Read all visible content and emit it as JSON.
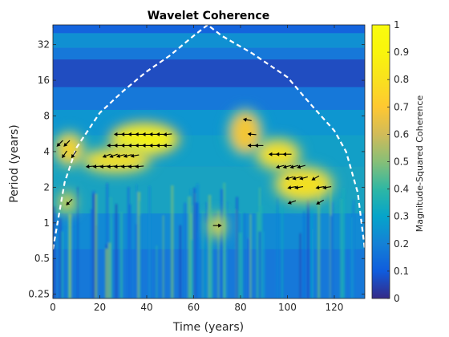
{
  "chart_data": {
    "type": "heatmap",
    "title": "Wavelet Coherence",
    "xlabel": "Time (years)",
    "ylabel": "Period (years)",
    "colorbar_label": "Magnitude-Squared Coherence",
    "xlim": [
      0,
      133
    ],
    "ylim": [
      0.23,
      47
    ],
    "yscale": "log2",
    "x_ticks": [
      0,
      20,
      40,
      60,
      80,
      100,
      120
    ],
    "x_tick_labels": [
      "0",
      "20",
      "40",
      "60",
      "80",
      "100",
      "120"
    ],
    "y_ticks": [
      0.25,
      0.5,
      1,
      2,
      4,
      8,
      16,
      32
    ],
    "y_tick_labels": [
      "0.25",
      "0.5",
      "1",
      "2",
      "4",
      "8",
      "16",
      "32"
    ],
    "colorbar_ticks": [
      0,
      0.1,
      0.2,
      0.3,
      0.4,
      0.5,
      0.6,
      0.7,
      0.8,
      0.9,
      1
    ],
    "colorbar_tick_labels": [
      "0",
      "0.1",
      "0.2",
      "0.3",
      "0.4",
      "0.5",
      "0.6",
      "0.7",
      "0.8",
      "0.9",
      "1"
    ],
    "clim": [
      0,
      1
    ],
    "colormap": "parula",
    "cone_of_influence": {
      "style": "white dashed",
      "points": [
        [
          0,
          0.6
        ],
        [
          5,
          2.2
        ],
        [
          10,
          4.3
        ],
        [
          20,
          8.5
        ],
        [
          30,
          13
        ],
        [
          40,
          19
        ],
        [
          50,
          26
        ],
        [
          60,
          38
        ],
        [
          66,
          47
        ],
        [
          72,
          38
        ],
        [
          85,
          27
        ],
        [
          100,
          17
        ],
        [
          110,
          10
        ],
        [
          120,
          6
        ],
        [
          125,
          4
        ],
        [
          130,
          1.8
        ],
        [
          133,
          0.6
        ]
      ]
    },
    "high_coherence_regions": [
      {
        "x": [
          26,
          52
        ],
        "period": [
          4.0,
          6.5
        ],
        "value": 0.9
      },
      {
        "x": [
          14,
          40
        ],
        "period": [
          2.8,
          4.0
        ],
        "value": 0.8
      },
      {
        "x": [
          2,
          12
        ],
        "period": [
          3.2,
          5.5
        ],
        "value": 0.75
      },
      {
        "x": [
          88,
          104
        ],
        "period": [
          3.0,
          4.8
        ],
        "value": 0.8
      },
      {
        "x": [
          96,
          118
        ],
        "period": [
          1.6,
          2.8
        ],
        "value": 0.8
      },
      {
        "x": [
          76,
          88
        ],
        "period": [
          4.0,
          8.5
        ],
        "value": 0.7
      },
      {
        "x": [
          68,
          72
        ],
        "period": [
          0.8,
          1.1
        ],
        "value": 0.8
      },
      {
        "x": [
          4,
          8
        ],
        "period": [
          1.3,
          1.7
        ],
        "value": 0.8
      }
    ],
    "phase_arrows": [
      {
        "x": 28,
        "period": 5.6,
        "angle": 180
      },
      {
        "x": 31,
        "period": 5.6,
        "angle": 180
      },
      {
        "x": 34,
        "period": 5.6,
        "angle": 180
      },
      {
        "x": 37,
        "period": 5.6,
        "angle": 180
      },
      {
        "x": 40,
        "period": 5.6,
        "angle": 180
      },
      {
        "x": 43,
        "period": 5.6,
        "angle": 180
      },
      {
        "x": 46,
        "period": 5.6,
        "angle": 180
      },
      {
        "x": 49,
        "period": 5.6,
        "angle": 185
      },
      {
        "x": 25,
        "period": 4.5,
        "angle": 180
      },
      {
        "x": 28,
        "period": 4.5,
        "angle": 180
      },
      {
        "x": 31,
        "period": 4.5,
        "angle": 180
      },
      {
        "x": 34,
        "period": 4.5,
        "angle": 180
      },
      {
        "x": 37,
        "period": 4.5,
        "angle": 180
      },
      {
        "x": 40,
        "period": 4.5,
        "angle": 180
      },
      {
        "x": 43,
        "period": 4.5,
        "angle": 180
      },
      {
        "x": 46,
        "period": 4.5,
        "angle": 180
      },
      {
        "x": 49,
        "period": 4.5,
        "angle": 180
      },
      {
        "x": 23,
        "period": 3.7,
        "angle": 200
      },
      {
        "x": 26,
        "period": 3.7,
        "angle": 200
      },
      {
        "x": 29,
        "period": 3.7,
        "angle": 195
      },
      {
        "x": 32,
        "period": 3.7,
        "angle": 195
      },
      {
        "x": 35,
        "period": 3.7,
        "angle": 190
      },
      {
        "x": 16,
        "period": 3.0,
        "angle": 185
      },
      {
        "x": 19,
        "period": 3.0,
        "angle": 185
      },
      {
        "x": 22,
        "period": 3.0,
        "angle": 185
      },
      {
        "x": 25,
        "period": 3.0,
        "angle": 185
      },
      {
        "x": 28,
        "period": 3.0,
        "angle": 185
      },
      {
        "x": 31,
        "period": 3.0,
        "angle": 185
      },
      {
        "x": 34,
        "period": 3.0,
        "angle": 185
      },
      {
        "x": 37,
        "period": 3.0,
        "angle": 185
      },
      {
        "x": 3,
        "period": 4.7,
        "angle": 225
      },
      {
        "x": 6,
        "period": 4.7,
        "angle": 225
      },
      {
        "x": 5,
        "period": 3.8,
        "angle": 235
      },
      {
        "x": 9,
        "period": 3.8,
        "angle": 235
      },
      {
        "x": 7,
        "period": 1.5,
        "angle": 225
      },
      {
        "x": 83,
        "period": 7.4,
        "angle": 170
      },
      {
        "x": 85,
        "period": 5.6,
        "angle": 175
      },
      {
        "x": 85,
        "period": 4.5,
        "angle": 180
      },
      {
        "x": 88,
        "period": 4.5,
        "angle": 180
      },
      {
        "x": 94,
        "period": 3.8,
        "angle": 180
      },
      {
        "x": 97,
        "period": 3.8,
        "angle": 180
      },
      {
        "x": 100,
        "period": 3.8,
        "angle": 180
      },
      {
        "x": 97,
        "period": 3.0,
        "angle": 195
      },
      {
        "x": 100,
        "period": 3.0,
        "angle": 195
      },
      {
        "x": 103,
        "period": 3.0,
        "angle": 195
      },
      {
        "x": 106,
        "period": 3.0,
        "angle": 195
      },
      {
        "x": 101,
        "period": 2.4,
        "angle": 195
      },
      {
        "x": 104,
        "period": 2.4,
        "angle": 195
      },
      {
        "x": 107,
        "period": 2.4,
        "angle": 195
      },
      {
        "x": 112,
        "period": 2.4,
        "angle": 210
      },
      {
        "x": 102,
        "period": 2.0,
        "angle": 190
      },
      {
        "x": 105,
        "period": 2.0,
        "angle": 190
      },
      {
        "x": 114,
        "period": 2.0,
        "angle": 190
      },
      {
        "x": 117,
        "period": 2.0,
        "angle": 190
      },
      {
        "x": 102,
        "period": 1.5,
        "angle": 200
      },
      {
        "x": 114,
        "period": 1.5,
        "angle": 210
      },
      {
        "x": 70,
        "period": 0.95,
        "angle": 0
      }
    ]
  }
}
